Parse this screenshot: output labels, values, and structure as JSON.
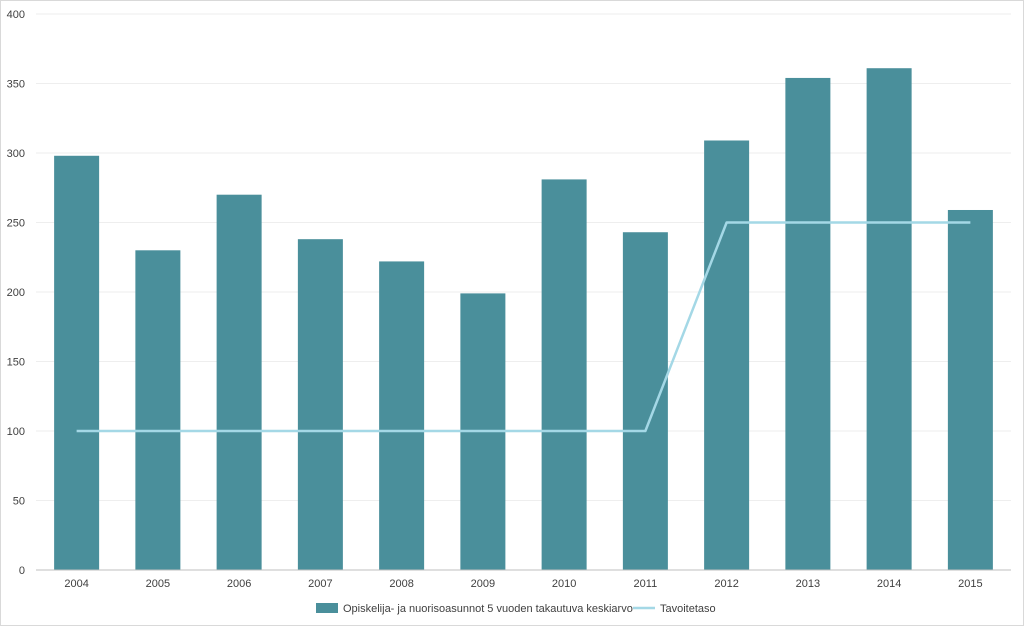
{
  "chart_data": {
    "type": "bar",
    "categories": [
      "2004",
      "2005",
      "2006",
      "2007",
      "2008",
      "2009",
      "2010",
      "2011",
      "2012",
      "2013",
      "2014",
      "2015"
    ],
    "series": [
      {
        "name": "Opiskelija- ja nuorisoasunnot 5 vuoden takautuva keskiarvo",
        "type": "bar",
        "color": "#4a8f9b",
        "values": [
          298,
          230,
          270,
          238,
          222,
          199,
          281,
          243,
          309,
          354,
          361,
          259
        ]
      },
      {
        "name": "Tavoitetaso",
        "type": "line",
        "color": "#a4d8e6",
        "values": [
          100,
          100,
          100,
          100,
          100,
          100,
          100,
          100,
          250,
          250,
          250,
          250
        ]
      }
    ],
    "ylim": [
      0,
      400
    ],
    "yticks": [
      "0",
      "50",
      "100",
      "150",
      "200",
      "250",
      "300",
      "350",
      "400"
    ],
    "grid": true,
    "legend": "bottom-center"
  }
}
